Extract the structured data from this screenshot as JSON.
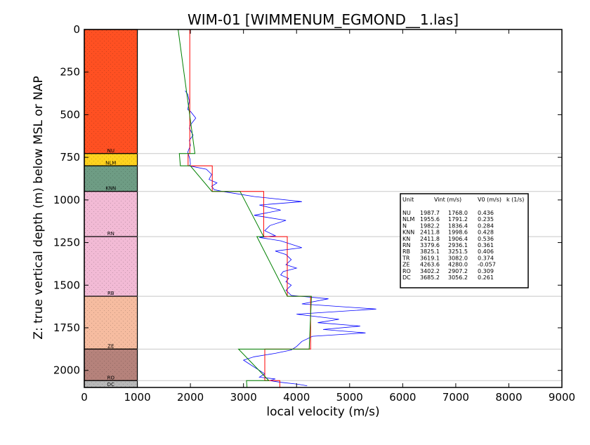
{
  "chart_data": {
    "type": "line",
    "title": "WIM-01 [WIMMENUM_EGMOND__1.las]",
    "xlabel": "local velocity (m/s)",
    "ylabel": "Z: true vertical depth (m) below MSL or NAP",
    "xlim": [
      0,
      9000
    ],
    "ylim": [
      2100,
      0
    ],
    "x_ticks": [
      "0",
      "1000",
      "2000",
      "3000",
      "4000",
      "5000",
      "6000",
      "7000",
      "8000",
      "9000"
    ],
    "y_ticks": [
      "0",
      "250",
      "500",
      "750",
      "1000",
      "1250",
      "1500",
      "1750",
      "2000"
    ],
    "x_tick_values": [
      0,
      1000,
      2000,
      3000,
      4000,
      5000,
      6000,
      7000,
      8000,
      9000
    ],
    "y_tick_values": [
      0,
      250,
      500,
      750,
      1000,
      1250,
      1500,
      1750,
      2000
    ],
    "lithology_column": {
      "x_range": [
        0,
        1000
      ],
      "units": [
        {
          "name": "NU",
          "top": 0,
          "base": 728,
          "color": "#ff5022"
        },
        {
          "name": "NLM",
          "top": 728,
          "base": 800,
          "color": "#ffd21e"
        },
        {
          "name": "KNN",
          "top": 800,
          "base": 950,
          "color": "#6e9c84"
        },
        {
          "name": "RN",
          "top": 950,
          "base": 1215,
          "color": "#f2bad5"
        },
        {
          "name": "RB",
          "top": 1215,
          "base": 1565,
          "color": "#f2bad5"
        },
        {
          "name": "ZE",
          "top": 1565,
          "base": 1875,
          "color": "#f6bca0"
        },
        {
          "name": "RO",
          "top": 1875,
          "base": 2060,
          "color": "#b5827b"
        },
        {
          "name": "DC",
          "top": 2060,
          "base": 2100,
          "color": "#b8b8b8"
        }
      ]
    },
    "boundary_depths": [
      728,
      800,
      950,
      1215,
      1565,
      1875,
      2060
    ],
    "series": [
      {
        "color": "#0000ff",
        "x": [
          1900,
          1950,
          1980,
          1950,
          2000,
          2100,
          2050,
          2000,
          1980,
          2050,
          1980,
          2000,
          1950,
          1990,
          2000,
          1980,
          2300,
          2400,
          2350,
          2500,
          2400,
          2450,
          2600,
          3200,
          3500,
          4100,
          3300,
          3700,
          3200,
          3800,
          3500,
          3400,
          3600,
          3300,
          3700,
          4100,
          3600,
          3800,
          3900,
          3800,
          4000,
          3750,
          3700,
          3850,
          3800,
          3900,
          3800,
          3900,
          4600,
          4100,
          5500,
          4000,
          4800,
          4400,
          5200,
          4500,
          5300,
          4300,
          4100,
          4000,
          3900,
          3600,
          3200,
          3000,
          3100,
          3200,
          3300,
          3400,
          3300,
          3600,
          3500,
          3700,
          4000,
          4200
        ],
        "y": [
          360,
          380,
          420,
          470,
          480,
          520,
          540,
          560,
          580,
          620,
          650,
          680,
          720,
          760,
          790,
          800,
          820,
          850,
          880,
          900,
          920,
          940,
          950,
          980,
          990,
          1010,
          1030,
          1060,
          1090,
          1120,
          1150,
          1180,
          1210,
          1220,
          1240,
          1280,
          1300,
          1320,
          1350,
          1380,
          1400,
          1420,
          1440,
          1460,
          1480,
          1500,
          1530,
          1560,
          1580,
          1610,
          1640,
          1670,
          1700,
          1720,
          1740,
          1760,
          1780,
          1800,
          1830,
          1860,
          1880,
          1900,
          1920,
          1940,
          1960,
          1980,
          2000,
          2020,
          2040,
          2050,
          2060,
          2070,
          2080,
          2090
        ]
      },
      {
        "color": "#ff0000",
        "x": [
          1988,
          1988,
          1956,
          1956,
          2412,
          2412,
          3380,
          3380,
          3825,
          3825,
          4264,
          4264,
          3402,
          3402,
          3685,
          3685
        ],
        "y": [
          0,
          728,
          728,
          800,
          800,
          950,
          950,
          1215,
          1215,
          1565,
          1565,
          1875,
          1875,
          2060,
          2060,
          2100
        ]
      },
      {
        "color": "#008000",
        "x": [
          1768,
          2085,
          1791,
          1810,
          1999,
          2405,
          2936,
          3379,
          3252,
          3826,
          4280,
          4238,
          2907,
          3478,
          3056,
          3066
        ],
        "y": [
          0,
          728,
          728,
          800,
          800,
          950,
          950,
          1215,
          1215,
          1565,
          1565,
          1875,
          1875,
          2060,
          2060,
          2100
        ]
      }
    ],
    "legend": {
      "placement": "right",
      "header": [
        "Unit",
        "Vint (m/s)",
        "V0 (m/s)",
        "k (1/s)"
      ],
      "rows": [
        [
          "NU",
          "1987.7",
          "1768.0",
          "0.436"
        ],
        [
          "NLM",
          "1955.6",
          "1791.2",
          "0.235"
        ],
        [
          "N",
          "1982.2",
          "1836.4",
          "0.284"
        ],
        [
          "KNN",
          "2411.8",
          "1998.6",
          "0.428"
        ],
        [
          "KN",
          "2411.8",
          "1906.4",
          "0.536"
        ],
        [
          "RN",
          "3379.6",
          "2936.1",
          "0.361"
        ],
        [
          "RB",
          "3825.1",
          "3251.5",
          "0.406"
        ],
        [
          "TR",
          "3619.1",
          "3082.0",
          "0.374"
        ],
        [
          "ZE",
          "4263.6",
          "4280.0",
          "-0.057"
        ],
        [
          "RO",
          "3402.2",
          "2907.2",
          "0.309"
        ],
        [
          "DC",
          "3685.2",
          "3056.2",
          "0.261"
        ]
      ]
    }
  }
}
